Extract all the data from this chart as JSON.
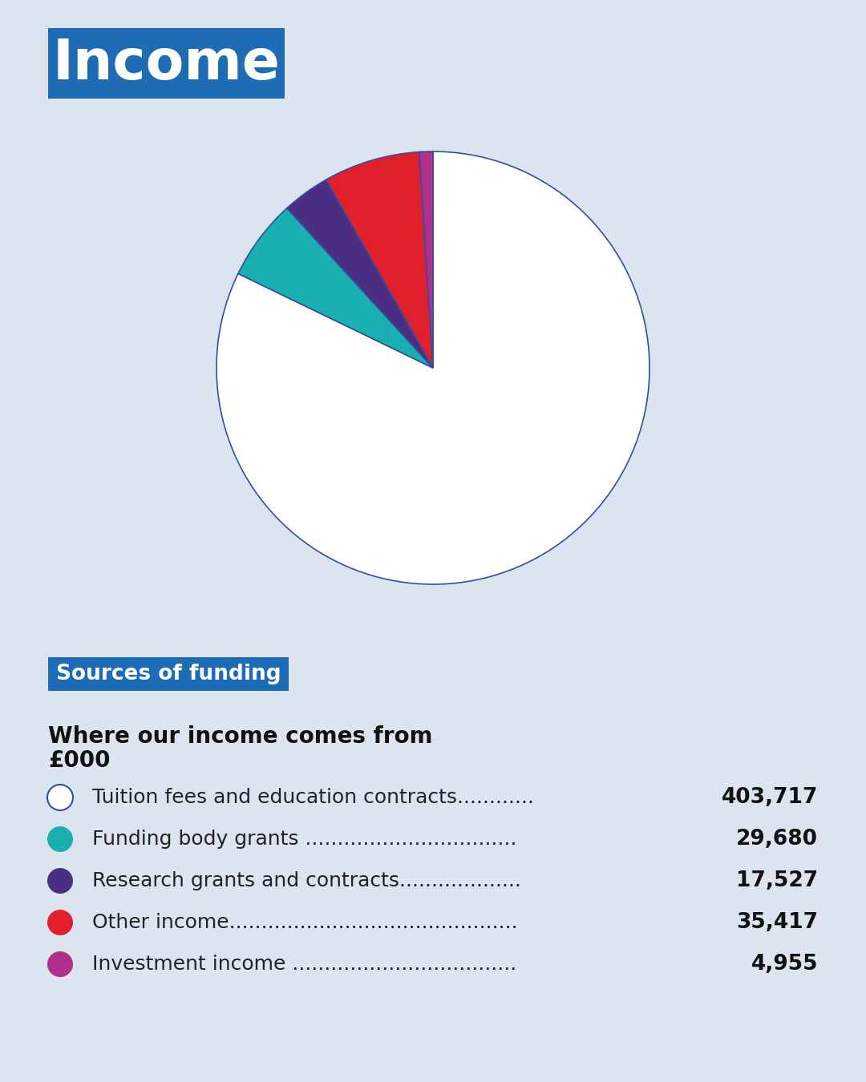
{
  "title": "Income",
  "title_bg_color": "#1E6CB5",
  "title_text_color": "#FFFFFF",
  "background_color": "#DCE4F0",
  "pie_values": [
    403717,
    29680,
    17527,
    35417,
    4955
  ],
  "pie_colors": [
    "#FFFFFF",
    "#1AAFB0",
    "#4B2D82",
    "#E0202A",
    "#B0308A"
  ],
  "pie_edge_color": "#3050A0",
  "pie_labels": [
    "Tuition fees and education contracts",
    "Funding body grants",
    "Research grants and contracts",
    "Other income",
    "Investment income"
  ],
  "pie_amounts": [
    "403,717",
    "29,680",
    "17,527",
    "35,417",
    "4,955"
  ],
  "legend_texts": [
    "Tuition fees and education contracts............",
    "Funding body grants .................................",
    "Research grants and contracts...................",
    "Other income.............................................",
    "Investment income ..................................."
  ],
  "section_label": "Sources of funding",
  "section_label_bg": "#1E6CB5",
  "section_label_color": "#FFFFFF",
  "subtitle_line1": "Where our income comes from",
  "subtitle_line2": "£000",
  "dot_colors": [
    "#FFFFFF",
    "#1AAFB0",
    "#4B2D82",
    "#E0202A",
    "#B0308A"
  ],
  "dot_outline_color": "#3050A0"
}
